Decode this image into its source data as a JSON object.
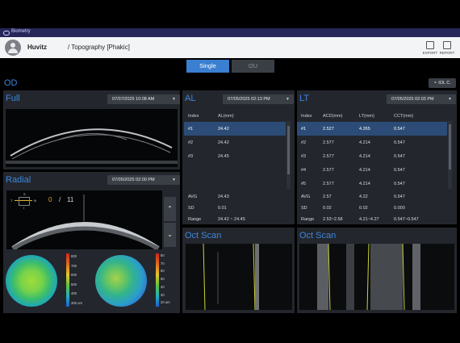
{
  "app": {
    "title": "Biometry"
  },
  "header": {
    "patient_name": "Huvitz",
    "breadcrumb": "/ Topography [Phakic]",
    "export_label": "EXPORT",
    "report_label": "REPORT"
  },
  "view_tabs": [
    {
      "label": "Single",
      "active": true
    },
    {
      "label": "OU",
      "active": false
    }
  ],
  "eye_label": "OD",
  "iol_button_label": "IOL C.",
  "full": {
    "title": "Full",
    "date": "07/07/2025 10:08 AM"
  },
  "radial": {
    "title": "Radial",
    "date": "07/05/2025 02:00 PM",
    "index": "0",
    "separator": "/",
    "total": "11",
    "orient_labels": {
      "top": "S",
      "left": "T",
      "right": "N",
      "bottom": "I"
    },
    "scale_left": {
      "values": [
        "800",
        "700",
        "600",
        "500",
        "400",
        "300 um"
      ]
    },
    "scale_right": {
      "values": [
        "80",
        "70",
        "60",
        "50",
        "40",
        "30",
        "20 um"
      ]
    }
  },
  "al": {
    "title": "AL",
    "date": "07/05/2025 02:13 PM",
    "columns": [
      "Index",
      "AL(mm)"
    ],
    "rows": [
      [
        "#1",
        "24.42"
      ],
      [
        "#2",
        "24.42"
      ],
      [
        "#3",
        "24.45"
      ]
    ],
    "summary": [
      [
        "AVG",
        "24.43"
      ],
      [
        "SD",
        "0.01"
      ],
      [
        "Range",
        "24.42 ~ 24.45"
      ]
    ]
  },
  "lt": {
    "title": "LT",
    "date": "07/05/2025 02:03 PM",
    "columns": [
      "Index",
      "ACD(mm)",
      "LT(mm)",
      "CCT(mm)"
    ],
    "rows": [
      [
        "#1",
        "2.527",
        "4.265",
        "0.547"
      ],
      [
        "#2",
        "2.577",
        "4.214",
        "0.547"
      ],
      [
        "#3",
        "2.577",
        "4.214",
        "0.547"
      ],
      [
        "#4",
        "2.577",
        "4.214",
        "0.547"
      ],
      [
        "#5",
        "2.577",
        "4.214",
        "0.547"
      ]
    ],
    "summary": [
      [
        "AVG",
        "2.57",
        "4.22",
        "0.547"
      ],
      [
        "SD",
        "0.02",
        "0.02",
        "0.000"
      ],
      [
        "Range",
        "2.53~2.58",
        "4.21~4.27",
        "0.547~0.547"
      ]
    ]
  },
  "oct_left": {
    "title": "Oct Scan"
  },
  "oct_right": {
    "title": "Oct Scan"
  },
  "colors": {
    "accent": "#3d86e0",
    "panel": "#23272d",
    "selected_row": "#2c4c77",
    "header_band": "#26265a"
  }
}
